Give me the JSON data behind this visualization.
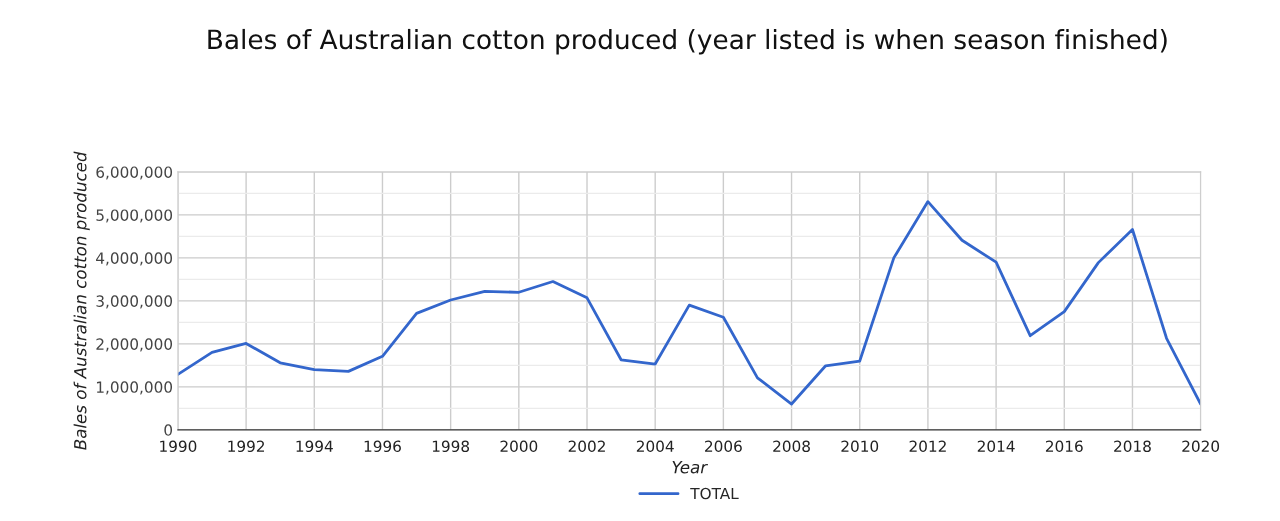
{
  "chart_data": {
    "type": "line",
    "title": "Bales of Australian cotton produced (year listed is when season finished)",
    "xlabel": "Year",
    "ylabel": "Bales of Australian cotton produced",
    "x": [
      1990,
      1991,
      1992,
      1993,
      1994,
      1995,
      1996,
      1997,
      1998,
      1999,
      2000,
      2001,
      2002,
      2003,
      2004,
      2005,
      2006,
      2007,
      2008,
      2009,
      2010,
      2011,
      2012,
      2013,
      2014,
      2015,
      2016,
      2017,
      2018,
      2019,
      2020
    ],
    "series": [
      {
        "name": "TOTAL",
        "color": "#3366cc",
        "values": [
          1290000,
          1800000,
          2010000,
          1560000,
          1400000,
          1360000,
          1710000,
          2710000,
          3020000,
          3220000,
          3200000,
          3450000,
          3070000,
          1630000,
          1530000,
          2900000,
          2620000,
          1210000,
          600000,
          1490000,
          1600000,
          4000000,
          5310000,
          4410000,
          3900000,
          2190000,
          2750000,
          3890000,
          4660000,
          2130000,
          600000
        ]
      }
    ],
    "xlim": [
      1990,
      2020
    ],
    "xticks": [
      1990,
      1992,
      1994,
      1996,
      1998,
      2000,
      2002,
      2004,
      2006,
      2008,
      2010,
      2012,
      2014,
      2016,
      2018,
      2020
    ],
    "ylim": [
      0,
      6000000
    ],
    "yticks": [
      {
        "value": 0,
        "label": "0"
      },
      {
        "value": 1000000,
        "label": "1,000,000"
      },
      {
        "value": 2000000,
        "label": "2,000,000"
      },
      {
        "value": 3000000,
        "label": "3,000,000"
      },
      {
        "value": 4000000,
        "label": "4,000,000"
      },
      {
        "value": 5000000,
        "label": "5,000,000"
      },
      {
        "value": 6000000,
        "label": "6,000,000"
      }
    ],
    "grid": true,
    "legend": "bottom",
    "marker": "none",
    "line_style": "solid"
  }
}
